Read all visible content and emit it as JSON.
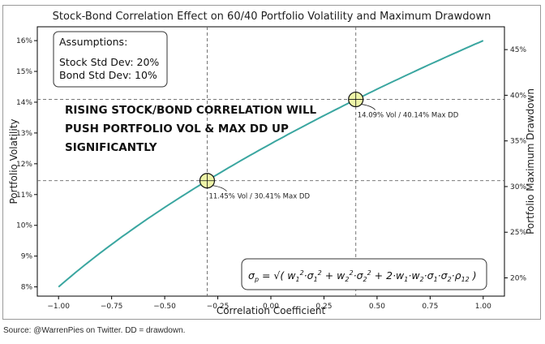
{
  "chart_data": {
    "type": "line",
    "title": "Stock-Bond Correlation Effect on 60/40 Portfolio Volatility and Maximum Drawdown",
    "xlabel": "Correlation Coefficient",
    "ylabel": "Portfolio Volatility",
    "ylabel_right": "Portfolio Maximum Drawdown",
    "xlim": [
      -1.1,
      1.1
    ],
    "ylim": [
      7.7,
      16.45
    ],
    "ylim_right": [
      18.0,
      47.5
    ],
    "x_ticks": [
      -1.0,
      -0.75,
      -0.5,
      -0.25,
      0.0,
      0.25,
      0.5,
      0.75,
      1.0
    ],
    "x_tick_labels": [
      "−1.00",
      "−0.75",
      "−0.50",
      "−0.25",
      "0.00",
      "0.25",
      "0.50",
      "0.75",
      "1.00"
    ],
    "y_ticks": [
      8,
      9,
      10,
      11,
      12,
      13,
      14,
      15,
      16
    ],
    "y_tick_labels": [
      "8%",
      "9%",
      "10%",
      "11%",
      "12%",
      "13%",
      "14%",
      "15%",
      "16%"
    ],
    "y_right_ticks": [
      20,
      25,
      30,
      35,
      40,
      45
    ],
    "y_right_tick_labels": [
      "20%",
      "25%",
      "30%",
      "35%",
      "40%",
      "45%"
    ],
    "grid": false,
    "weights": {
      "stock": 0.6,
      "bond": 0.4
    },
    "stock_std": 20,
    "bond_std": 10,
    "series": [
      {
        "color": "#3aa6a0"
      }
    ],
    "highlights": [
      {
        "x": -0.3,
        "y": 11.45,
        "label": "11.45% Vol / 30.41% Max DD"
      },
      {
        "x": 0.4,
        "y": 14.09,
        "label": "14.09% Vol / 40.14% Max DD"
      }
    ],
    "assumptions": {
      "heading": "Assumptions:",
      "lines": [
        "Stock Std Dev: 20%",
        "Bond Std Dev: 10%"
      ]
    },
    "callout_lines": [
      "RISING STOCK/BOND CORRELATION WILL",
      "PUSH PORTFOLIO VOL & MAX DD UP",
      "SIGNIFICANTLY"
    ],
    "colors": {
      "line": "#3aa6a0",
      "marker_fill": "#eef5a8",
      "reference_line": "#666666",
      "axis": "#000000"
    }
  },
  "source_note": "Source: @WarrenPies on Twitter. DD = drawdown."
}
